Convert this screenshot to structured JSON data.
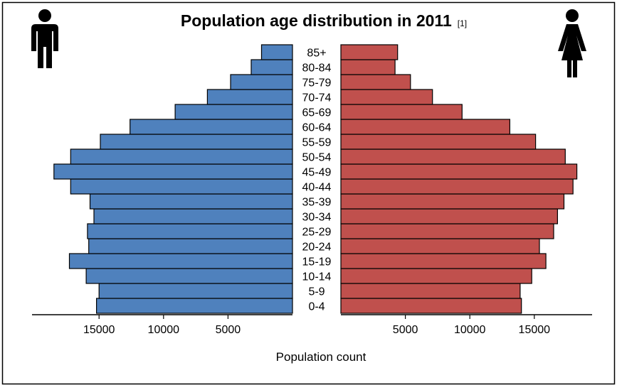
{
  "chart_data": {
    "type": "bar",
    "title": "Population age distribution in 2011",
    "footnote": "[1]",
    "xlabel": "Population count",
    "categories": [
      "0-4",
      "5-9",
      "10-14",
      "15-19",
      "20-24",
      "25-29",
      "30-34",
      "35-39",
      "40-44",
      "45-49",
      "50-54",
      "55-59",
      "60-64",
      "65-69",
      "70-74",
      "75-79",
      "80-84",
      "85+"
    ],
    "series": [
      {
        "name": "Male",
        "side": "left",
        "color": "#4f81bd",
        "values": [
          15200,
          15000,
          16000,
          17300,
          15800,
          15900,
          15400,
          15700,
          17200,
          18500,
          17200,
          14900,
          12600,
          9100,
          6600,
          4800,
          3200,
          2400
        ]
      },
      {
        "name": "Female",
        "side": "right",
        "color": "#c0504d",
        "values": [
          14000,
          13900,
          14800,
          15900,
          15400,
          16500,
          16800,
          17300,
          18000,
          18300,
          17400,
          15100,
          13100,
          9400,
          7100,
          5400,
          4200,
          4400
        ]
      }
    ],
    "xticks_left": [
      15000,
      10000,
      5000
    ],
    "xticks_right": [
      5000,
      10000,
      15000
    ],
    "xlim": [
      0,
      18500
    ],
    "grid": false,
    "icons": {
      "left": "male-figure-icon",
      "right": "female-figure-icon"
    }
  }
}
